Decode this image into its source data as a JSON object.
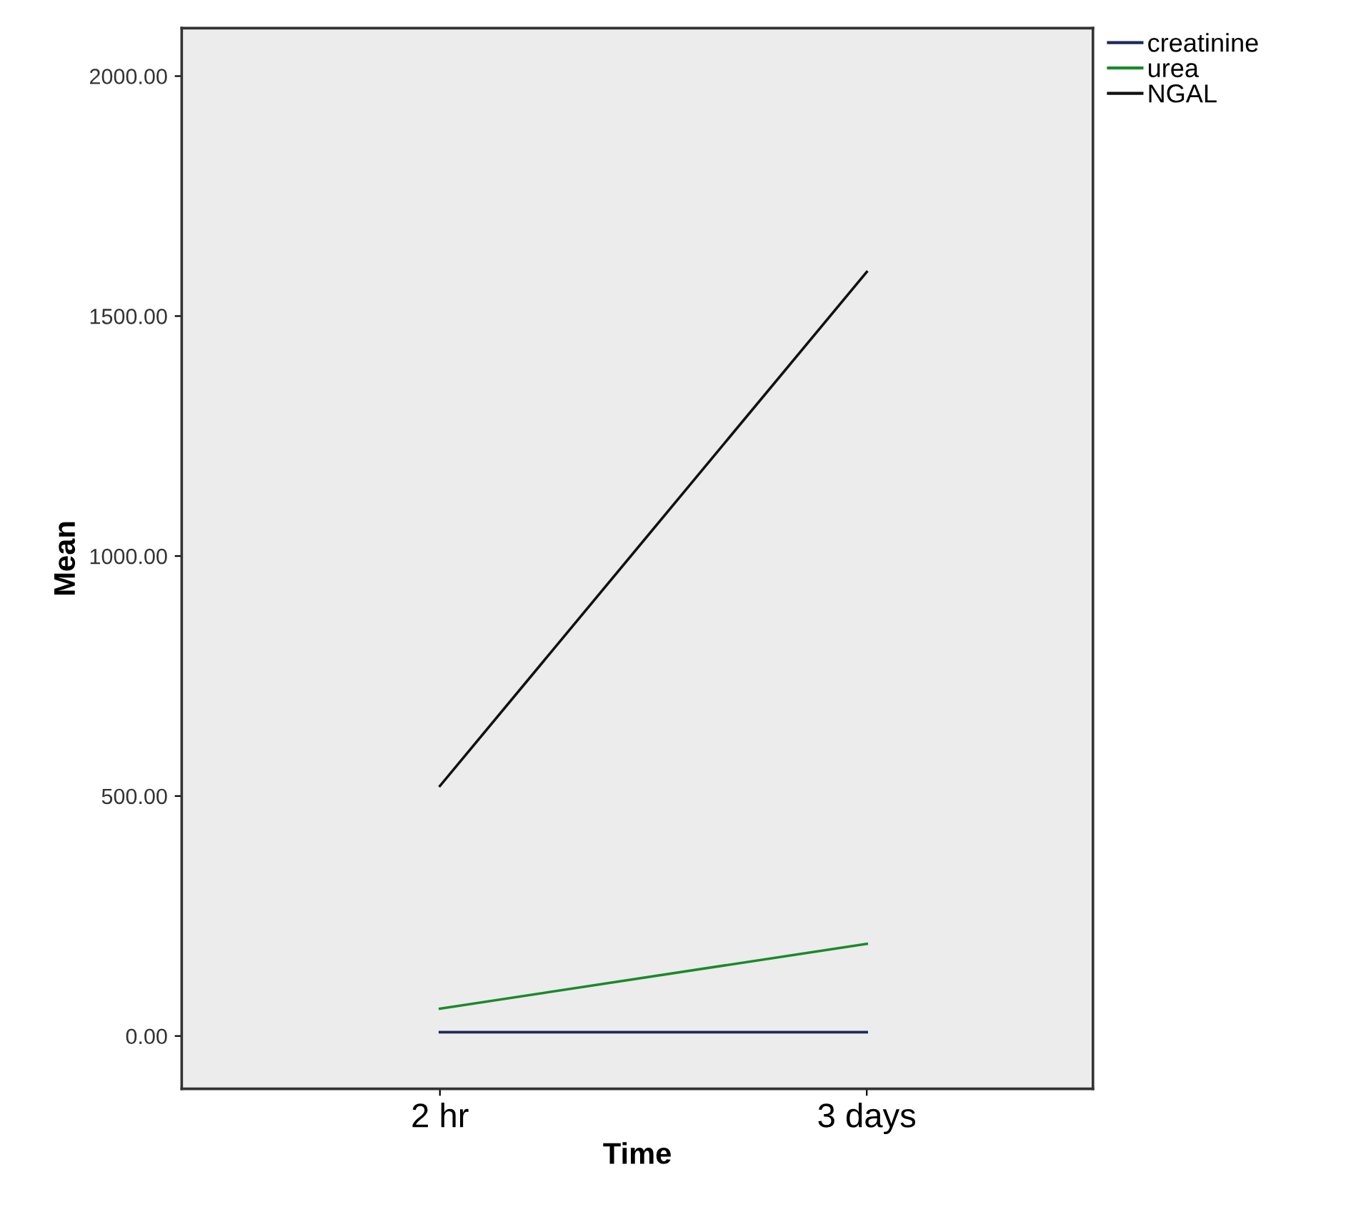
{
  "chart_data": {
    "type": "line",
    "xlabel": "Time",
    "ylabel": "Mean",
    "categories": [
      "2 hr",
      "3 days"
    ],
    "series": [
      {
        "name": "creatinine",
        "color": "#1f2a5a",
        "values": [
          8,
          8
        ]
      },
      {
        "name": "urea",
        "color": "#1a8a2a",
        "values": [
          57,
          192
        ]
      },
      {
        "name": "NGAL",
        "color": "#111111",
        "values": [
          521,
          1592
        ]
      }
    ],
    "ylim": [
      -110,
      2100
    ],
    "yticks": [
      {
        "value": 0,
        "label": "0.00"
      },
      {
        "value": 500,
        "label": "500.00"
      },
      {
        "value": 1000,
        "label": "1000.00"
      },
      {
        "value": 1500,
        "label": "1500.00"
      },
      {
        "value": 2000,
        "label": "2000.00"
      }
    ],
    "grid": false,
    "legend": "top right",
    "marker": "none",
    "line_style": "solid"
  }
}
